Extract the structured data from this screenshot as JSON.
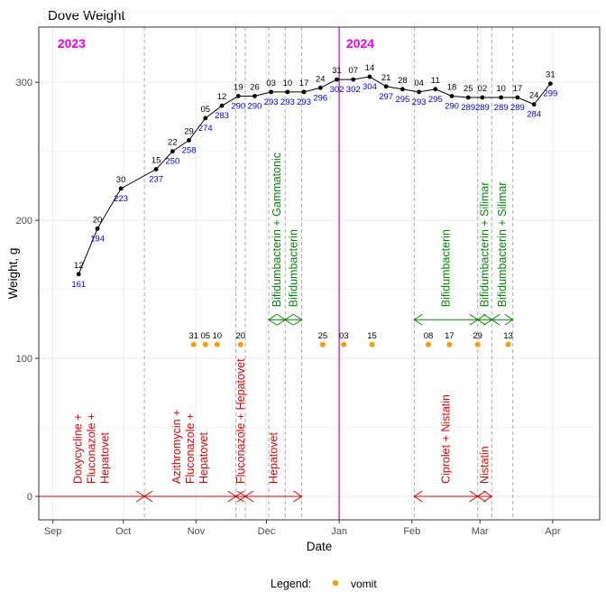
{
  "chart_data": {
    "type": "line",
    "title": "Dove Weight",
    "xlabel": "Date",
    "ylabel": "Weight, g",
    "x_axis": {
      "type": "date",
      "range": [
        "2023-08-26",
        "2024-04-21"
      ],
      "ticks": [
        {
          "date": "2023-09-01",
          "label": "Sep"
        },
        {
          "date": "2023-10-01",
          "label": "Oct"
        },
        {
          "date": "2023-11-01",
          "label": "Nov"
        },
        {
          "date": "2023-12-01",
          "label": "Dec"
        },
        {
          "date": "2024-01-01",
          "label": "Jan"
        },
        {
          "date": "2024-02-01",
          "label": "Feb"
        },
        {
          "date": "2024-03-01",
          "label": "Mar"
        },
        {
          "date": "2024-04-01",
          "label": "Apr"
        }
      ]
    },
    "y_axis": {
      "range": [
        -17,
        340
      ],
      "ticks": [
        0,
        100,
        200,
        300
      ]
    },
    "grid": true,
    "series": [
      {
        "color": "#000000",
        "label_color": "#0000cc",
        "points": [
          {
            "date": "2023-09-12",
            "day_label": "12",
            "weight": 161
          },
          {
            "date": "2023-09-20",
            "day_label": "20",
            "weight": 194
          },
          {
            "date": "2023-09-30",
            "day_label": "30",
            "weight": 223
          },
          {
            "date": "2023-10-15",
            "day_label": "15",
            "weight": 237
          },
          {
            "date": "2023-10-22",
            "day_label": "22",
            "weight": 250
          },
          {
            "date": "2023-10-29",
            "day_label": "29",
            "weight": 258
          },
          {
            "date": "2023-11-05",
            "day_label": "05",
            "weight": 274
          },
          {
            "date": "2023-11-12",
            "day_label": "12",
            "weight": 283
          },
          {
            "date": "2023-11-19",
            "day_label": "19",
            "weight": 290
          },
          {
            "date": "2023-11-26",
            "day_label": "26",
            "weight": 290
          },
          {
            "date": "2023-12-03",
            "day_label": "03",
            "weight": 293
          },
          {
            "date": "2023-12-10",
            "day_label": "10",
            "weight": 293
          },
          {
            "date": "2023-12-17",
            "day_label": "17",
            "weight": 293
          },
          {
            "date": "2023-12-24",
            "day_label": "24",
            "weight": 296
          },
          {
            "date": "2023-12-31",
            "day_label": "31",
            "weight": 302
          },
          {
            "date": "2024-01-07",
            "day_label": "07",
            "weight": 302
          },
          {
            "date": "2024-01-14",
            "day_label": "14",
            "weight": 304
          },
          {
            "date": "2024-01-21",
            "day_label": "21",
            "weight": 297
          },
          {
            "date": "2024-01-28",
            "day_label": "28",
            "weight": 295
          },
          {
            "date": "2024-02-04",
            "day_label": "04",
            "weight": 293
          },
          {
            "date": "2024-02-11",
            "day_label": "11",
            "weight": 295
          },
          {
            "date": "2024-02-18",
            "day_label": "18",
            "weight": 290
          },
          {
            "date": "2024-02-25",
            "day_label": "25",
            "weight": 289
          },
          {
            "date": "2024-03-02",
            "day_label": "02",
            "weight": 289
          },
          {
            "date": "2024-03-10",
            "day_label": "10",
            "weight": 289
          },
          {
            "date": "2024-03-17",
            "day_label": "17",
            "weight": 289
          },
          {
            "date": "2024-03-24",
            "day_label": "24",
            "weight": 284
          },
          {
            "date": "2024-03-31",
            "day_label": "31",
            "weight": 299
          }
        ]
      }
    ],
    "vomit_events": {
      "color": "#f5a000",
      "weight": 110,
      "points": [
        {
          "date": "2023-10-31",
          "day_label": "31"
        },
        {
          "date": "2023-11-05",
          "day_label": "05"
        },
        {
          "date": "2023-11-10",
          "day_label": "10"
        },
        {
          "date": "2023-11-20",
          "day_label": "20"
        },
        {
          "date": "2023-12-25",
          "day_label": "25"
        },
        {
          "date": "2024-01-03",
          "day_label": "03"
        },
        {
          "date": "2024-01-15",
          "day_label": "15"
        },
        {
          "date": "2024-02-08",
          "day_label": "08"
        },
        {
          "date": "2024-02-17",
          "day_label": "17"
        },
        {
          "date": "2024-02-29",
          "day_label": "29"
        },
        {
          "date": "2024-03-13",
          "day_label": "13"
        }
      ]
    },
    "vlines_dashed": [
      "2023-10-10",
      "2023-11-18",
      "2023-11-22",
      "2023-12-02",
      "2023-12-09",
      "2023-12-16",
      "2024-02-02",
      "2024-02-29",
      "2024-03-06",
      "2024-03-15"
    ],
    "year_line": {
      "date": "2024-01-01",
      "color": "#cc00cc"
    },
    "year_labels": [
      {
        "date": "2023-09-03",
        "text": "2023"
      },
      {
        "date": "2024-01-04",
        "text": "2024"
      }
    ],
    "treatments": [
      {
        "start": "2023-08-26",
        "end": "2023-10-10",
        "text": "Doxycycline +\nFluconazole +\nHepatovet",
        "level": 0,
        "color": "#e00000"
      },
      {
        "start": "2023-10-10",
        "end": "2023-11-18",
        "text": "Azithromycin +\nFluconazole +\nHepatovet",
        "level": 0,
        "color": "#e00000"
      },
      {
        "start": "2023-11-18",
        "end": "2023-11-22",
        "text": "Fluconazole + Hepatovet",
        "level": 0,
        "color": "#e00000"
      },
      {
        "start": "2023-11-22",
        "end": "2023-12-16",
        "text": "Hepatovet",
        "level": 0,
        "color": "#e00000"
      },
      {
        "start": "2024-02-02",
        "end": "2024-02-29",
        "text": "Ciprolet + Nistatin",
        "level": 0,
        "color": "#e00000"
      },
      {
        "start": "2024-02-29",
        "end": "2024-03-06",
        "text": "Nistatin",
        "level": 0,
        "color": "#e00000"
      },
      {
        "start": "2023-12-02",
        "end": "2023-12-09",
        "text": "Bifidumbacterin + Gammatonic",
        "level": 128,
        "color": "#008800"
      },
      {
        "start": "2023-12-09",
        "end": "2023-12-16",
        "text": "Bifidumbacterin",
        "level": 128,
        "color": "#008800"
      },
      {
        "start": "2024-02-02",
        "end": "2024-02-29",
        "text": "Bifidumbacterin",
        "level": 128,
        "color": "#008800"
      },
      {
        "start": "2024-02-29",
        "end": "2024-03-06",
        "text": "Bifidumbacterin + Silimar",
        "level": 128,
        "color": "#008800"
      },
      {
        "start": "2024-03-06",
        "end": "2024-03-15",
        "text": "Bifidumbacterin + Silimar",
        "level": 128,
        "color": "#008800"
      }
    ],
    "legend": {
      "position": "bottom",
      "title": "Legend:",
      "items": [
        {
          "label": "vomit",
          "color": "#f5a000"
        }
      ]
    }
  }
}
